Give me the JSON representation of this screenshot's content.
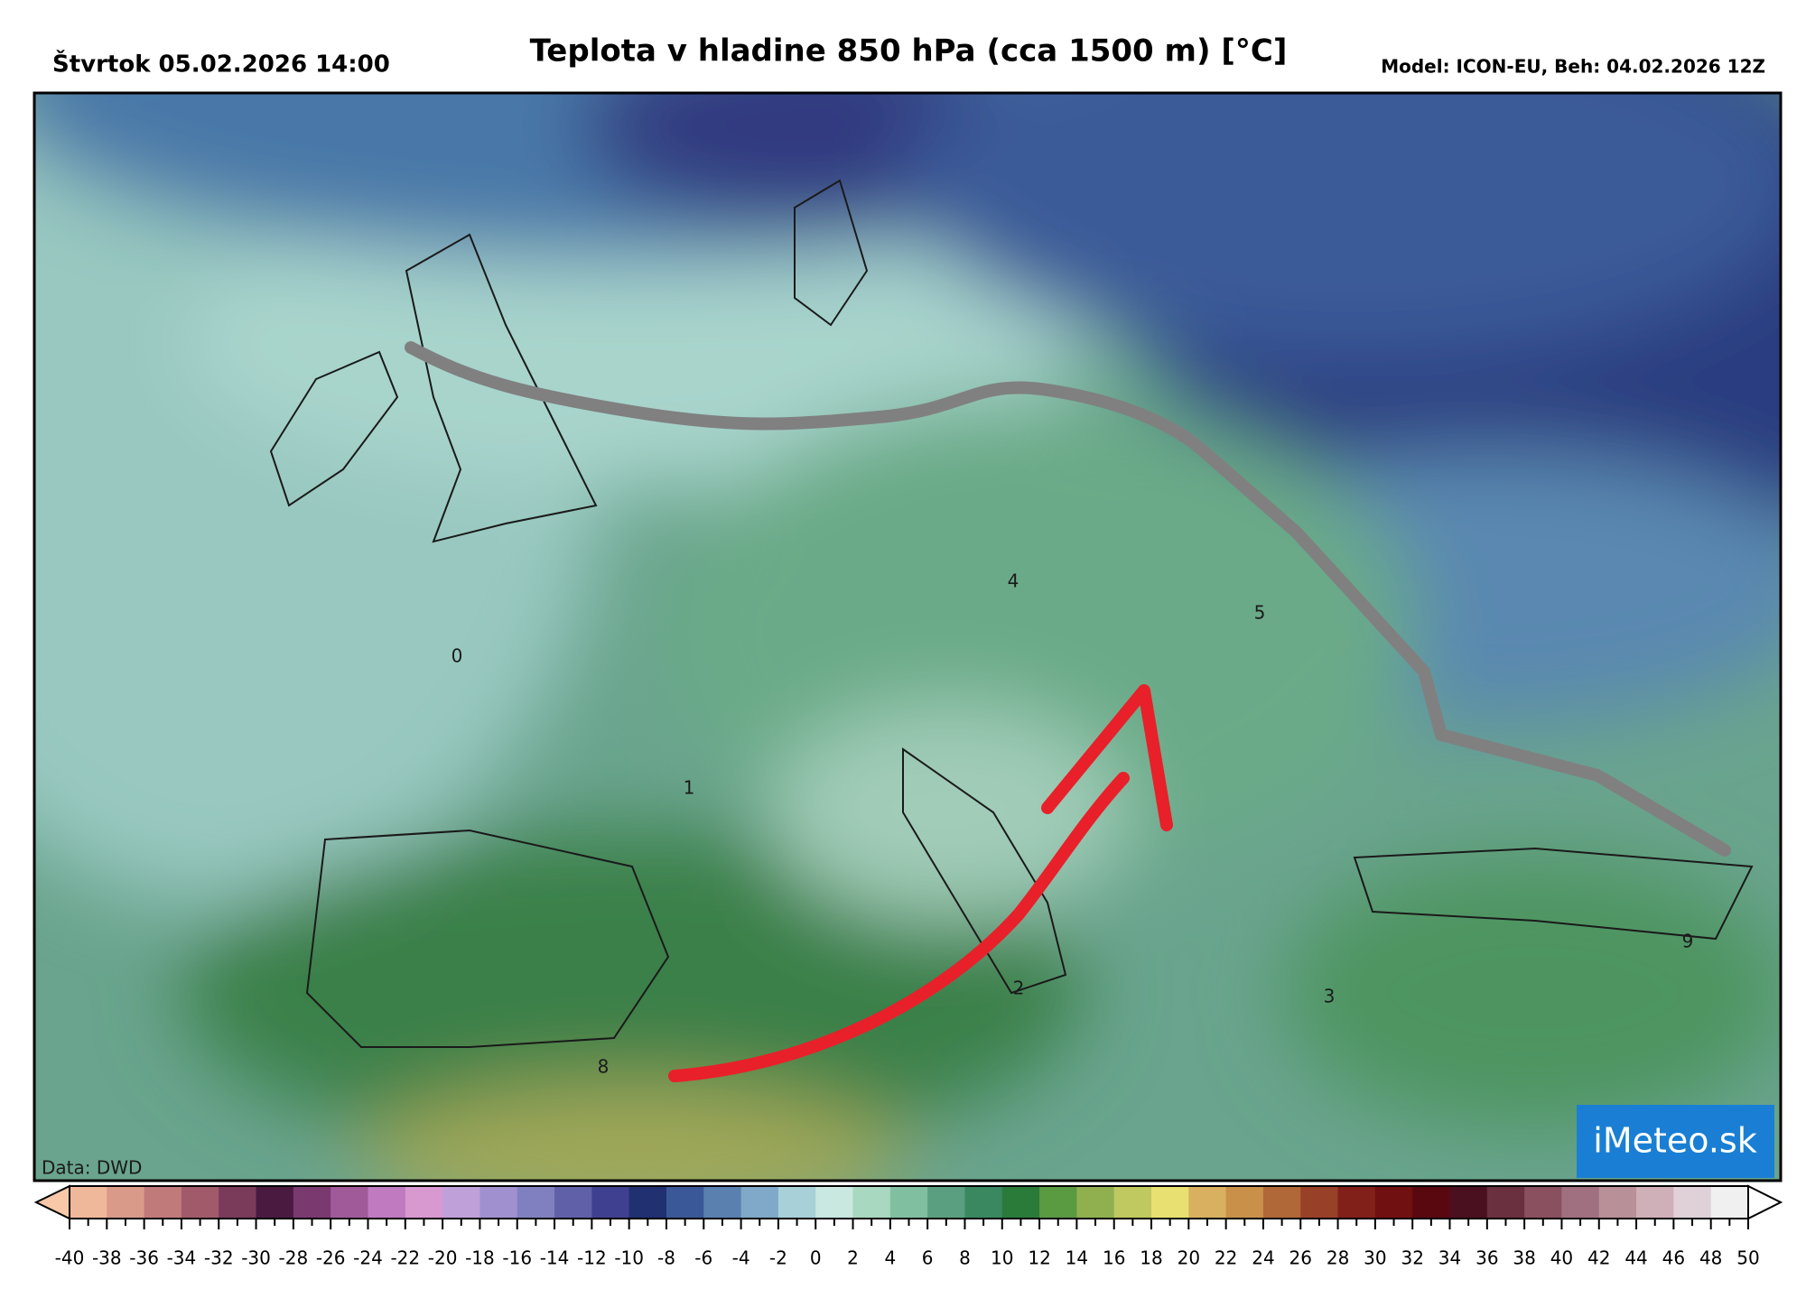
{
  "header": {
    "date": "Štvrtok 05.02.2026 14:00",
    "title": "Teplota v hladine 850 hPa (cca 1500 m) [°C]",
    "model": "Model: ICON-EU, Beh: 04.02.2026 12Z"
  },
  "map": {
    "source": "Data: DWD",
    "logo": "iMeteo.sk",
    "labels": [
      0,
      1,
      2,
      3,
      4,
      5,
      8,
      9
    ]
  },
  "colorbar": {
    "ticks": [
      -40,
      -38,
      -36,
      -34,
      -32,
      -30,
      -28,
      -26,
      -24,
      -22,
      -20,
      -18,
      -16,
      -14,
      -12,
      -10,
      -8,
      -6,
      -4,
      -2,
      0,
      2,
      4,
      6,
      8,
      10,
      12,
      14,
      16,
      18,
      20,
      22,
      24,
      26,
      28,
      30,
      32,
      34,
      36,
      38,
      40,
      42,
      44,
      46,
      48,
      50
    ],
    "colors": [
      "#f0b89a",
      "#d99a8a",
      "#c07a7a",
      "#a05a6a",
      "#7a3a5a",
      "#4a1a40",
      "#7a3a70",
      "#a05a9a",
      "#c07ac0",
      "#d898d0",
      "#c0a0d8",
      "#a090d0",
      "#8080c0",
      "#6060a8",
      "#404090",
      "#203070",
      "#3a5898",
      "#5a80b0",
      "#80a8c8",
      "#a8d0d8",
      "#c8e8e0",
      "#a8d8c0",
      "#80c0a0",
      "#5aa080",
      "#3a8860",
      "#2a7a3a",
      "#5a9a40",
      "#90b050",
      "#c0c860",
      "#e8e070",
      "#d8b060",
      "#c89048",
      "#b06838",
      "#984028",
      "#802018",
      "#701010",
      "#5a0810",
      "#4a1020",
      "#6a3040",
      "#8a5060",
      "#a07080",
      "#b89098",
      "#d0b0b8",
      "#e0d0d8",
      "#f0f0f0"
    ],
    "under_color": "#f8c8a8",
    "over_color": "#ffffff"
  }
}
